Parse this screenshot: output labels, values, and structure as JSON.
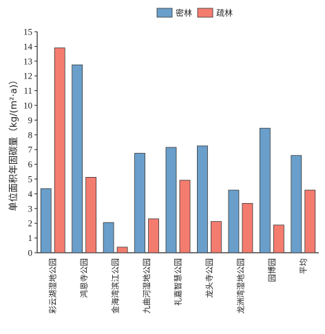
{
  "chart_data": {
    "type": "bar",
    "ylabel": "单位面积年固碳量（kg/(m²·a)）",
    "ylim": [
      0,
      15
    ],
    "yticks": [
      0,
      1,
      2,
      3,
      4,
      5,
      6,
      7,
      8,
      9,
      10,
      11,
      12,
      13,
      14,
      15
    ],
    "grid": false,
    "legend_position": "top-center",
    "categories": [
      "彩云湖湿地公园",
      "鸿恩寺公园",
      "金海湾滨江公园",
      "九曲河湿地公园",
      "礼嘉智慧公园",
      "龙头寺公园",
      "龙洲湾湿地公园",
      "园博园",
      "平均"
    ],
    "series": [
      {
        "name": "密林",
        "color": "#6a9fcb",
        "values": [
          4.35,
          12.75,
          2.05,
          6.75,
          7.15,
          7.25,
          4.25,
          8.45,
          6.6
        ]
      },
      {
        "name": "疏林",
        "color": "#f47c6f",
        "values": [
          13.9,
          5.12,
          0.38,
          2.3,
          4.92,
          2.12,
          3.35,
          1.88,
          4.25
        ]
      }
    ]
  }
}
